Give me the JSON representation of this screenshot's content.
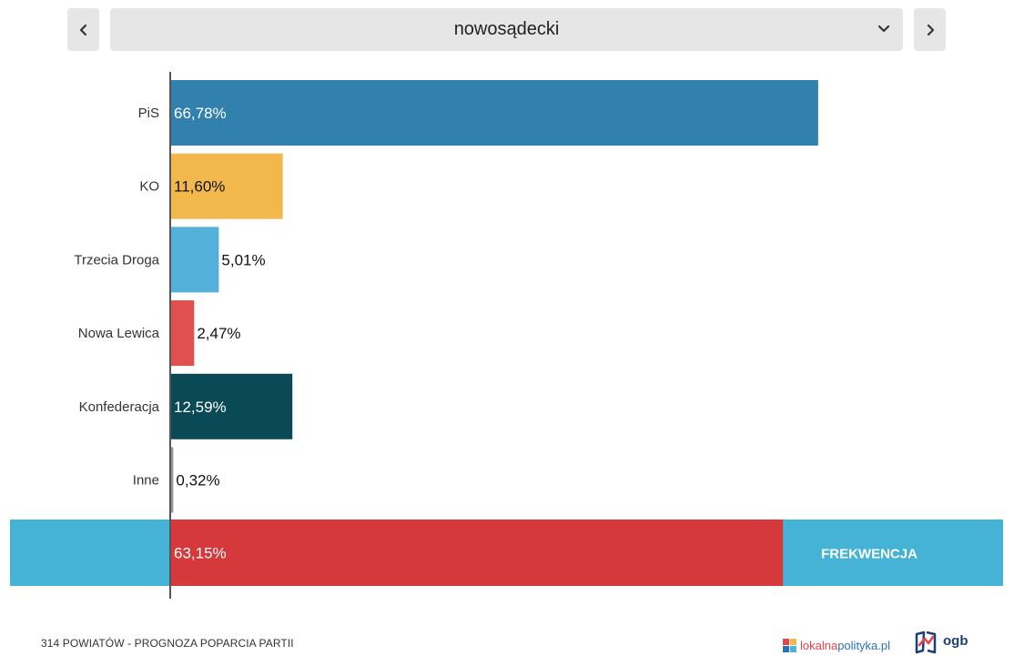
{
  "selector": {
    "selected": "nowosądecki",
    "prev_icon": "chevron-left-icon",
    "next_icon": "chevron-right-icon",
    "dropdown_icon": "chevron-down-icon"
  },
  "chart_data": {
    "type": "bar",
    "orientation": "horizontal",
    "categories": [
      "PiS",
      "KO",
      "Trzecia Droga",
      "Nowa Lewica",
      "Konfederacja",
      "Inne"
    ],
    "values": [
      66.78,
      11.6,
      5.01,
      2.47,
      12.59,
      0.32
    ],
    "value_labels": [
      "66,78%",
      "11,60%",
      "5,01%",
      "2,47%",
      "12,59%",
      "0,32%"
    ],
    "colors": [
      "#3180ae",
      "#f3b84c",
      "#52b0d9",
      "#e15050",
      "#0a4a57",
      "#999999"
    ],
    "unit": "%",
    "xlim": [
      0,
      100
    ],
    "turnout": {
      "label": "FREKWENCJA",
      "value": 63.15,
      "value_label": "63,15%",
      "bar_color": "#d5393c",
      "background_color": "#44b3d5"
    }
  },
  "footer": {
    "title": "314 POWIATÓW - PROGNOZA POPARCIA PARTII",
    "logo_lokalna_part1": "lokalna",
    "logo_lokalna_part2": "polityka.pl",
    "logo_ogb": "ogb"
  }
}
